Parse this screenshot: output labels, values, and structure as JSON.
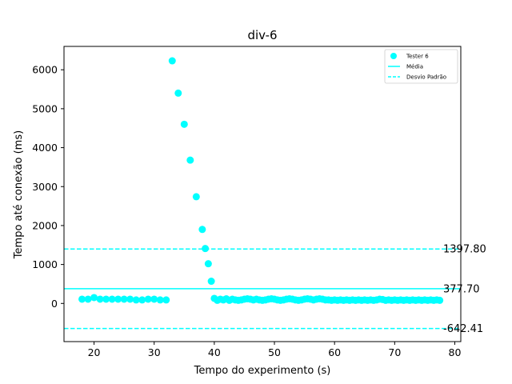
{
  "chart_data": {
    "type": "scatter",
    "title": "div-6",
    "xlabel": "Tempo do experimento (s)",
    "ylabel": "Tempo até conexão (ms)",
    "xlim": [
      15,
      81
    ],
    "ylim": [
      -980,
      6600
    ],
    "xticks": [
      20,
      30,
      40,
      50,
      60,
      70,
      80
    ],
    "yticks": [
      0,
      1000,
      2000,
      3000,
      4000,
      5000,
      6000
    ],
    "grid": false,
    "legend_position": "top-right",
    "color": "#00ffff",
    "series": [
      {
        "name": "Tester 6",
        "points": [
          [
            18,
            110
          ],
          [
            19,
            110
          ],
          [
            20,
            150
          ],
          [
            21,
            110
          ],
          [
            22,
            110
          ],
          [
            23,
            110
          ],
          [
            24,
            110
          ],
          [
            25,
            110
          ],
          [
            26,
            110
          ],
          [
            27,
            90
          ],
          [
            28,
            90
          ],
          [
            29,
            110
          ],
          [
            30,
            110
          ],
          [
            31,
            90
          ],
          [
            32,
            90
          ],
          [
            33,
            6230
          ],
          [
            34,
            5400
          ],
          [
            35,
            4600
          ],
          [
            36,
            3680
          ],
          [
            37,
            2740
          ],
          [
            38,
            1900
          ],
          [
            38.5,
            1410
          ],
          [
            39,
            1020
          ],
          [
            39.5,
            570
          ],
          [
            40,
            130
          ],
          [
            40.5,
            80
          ],
          [
            41,
            110
          ],
          [
            41.5,
            90
          ],
          [
            42,
            120
          ],
          [
            42.5,
            80
          ],
          [
            43,
            110
          ],
          [
            43.5,
            90
          ],
          [
            44,
            80
          ],
          [
            44.5,
            90
          ],
          [
            45,
            110
          ],
          [
            45.5,
            120
          ],
          [
            46,
            110
          ],
          [
            46.5,
            90
          ],
          [
            47,
            110
          ],
          [
            47.5,
            90
          ],
          [
            48,
            80
          ],
          [
            48.5,
            90
          ],
          [
            49,
            110
          ],
          [
            49.5,
            120
          ],
          [
            50,
            110
          ],
          [
            50.5,
            90
          ],
          [
            51,
            80
          ],
          [
            51.5,
            90
          ],
          [
            52,
            110
          ],
          [
            52.5,
            120
          ],
          [
            53,
            110
          ],
          [
            53.5,
            90
          ],
          [
            54,
            80
          ],
          [
            54.5,
            90
          ],
          [
            55,
            110
          ],
          [
            55.5,
            120
          ],
          [
            56,
            110
          ],
          [
            56.5,
            90
          ],
          [
            57,
            110
          ],
          [
            57.5,
            120
          ],
          [
            58,
            110
          ],
          [
            58.5,
            90
          ],
          [
            59,
            90
          ],
          [
            59.5,
            80
          ],
          [
            60,
            90
          ],
          [
            60.5,
            80
          ],
          [
            61,
            90
          ],
          [
            61.5,
            80
          ],
          [
            62,
            90
          ],
          [
            62.5,
            80
          ],
          [
            63,
            90
          ],
          [
            63.5,
            80
          ],
          [
            64,
            90
          ],
          [
            64.5,
            80
          ],
          [
            65,
            90
          ],
          [
            65.5,
            80
          ],
          [
            66,
            90
          ],
          [
            66.5,
            80
          ],
          [
            67,
            90
          ],
          [
            67.5,
            110
          ],
          [
            68,
            100
          ],
          [
            68.5,
            80
          ],
          [
            69,
            90
          ],
          [
            69.5,
            80
          ],
          [
            70,
            90
          ],
          [
            70.5,
            80
          ],
          [
            71,
            90
          ],
          [
            71.5,
            80
          ],
          [
            72,
            90
          ],
          [
            72.5,
            80
          ],
          [
            73,
            90
          ],
          [
            73.5,
            80
          ],
          [
            74,
            90
          ],
          [
            74.5,
            80
          ],
          [
            75,
            90
          ],
          [
            75.5,
            80
          ],
          [
            76,
            90
          ],
          [
            76.5,
            80
          ],
          [
            77,
            90
          ],
          [
            77.5,
            80
          ]
        ]
      }
    ],
    "lines": [
      {
        "name": "Média",
        "y": 377.7,
        "label": "377.70",
        "style": "solid"
      },
      {
        "name": "Desvio Padrão",
        "y": 1397.8,
        "label": "1397.80",
        "style": "dashed"
      },
      {
        "name": "Desvio Padrão",
        "y": -642.41,
        "label": "-642.41",
        "style": "dashed"
      }
    ],
    "legend": [
      {
        "label": "Tester 6",
        "kind": "marker"
      },
      {
        "label": "Média",
        "kind": "solid-line"
      },
      {
        "label": "Desvio Padrão",
        "kind": "dashed-line"
      }
    ]
  }
}
